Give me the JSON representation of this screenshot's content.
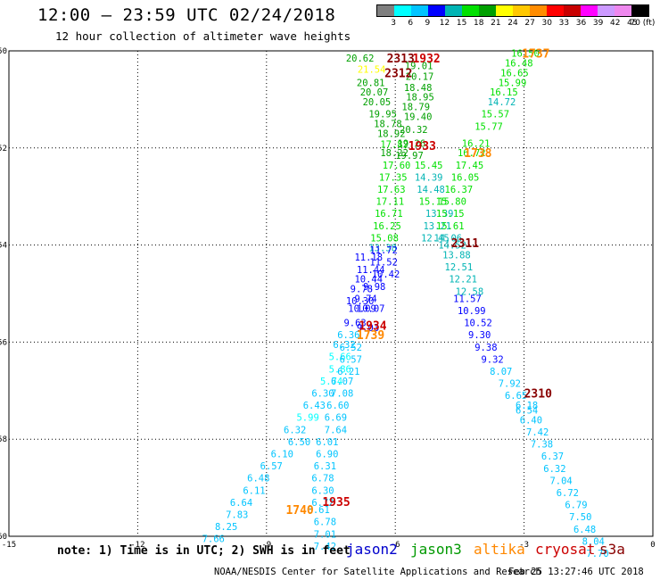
{
  "header": {
    "title": "12:00 – 23:59 UTC 02/24/2018",
    "subtitle": "12 hour collection of altimeter wave heights"
  },
  "colorbar": {
    "colors": [
      "#7f7f7f",
      "#00ffff",
      "#00c4ff",
      "#0000ff",
      "#00b4b4",
      "#00e000",
      "#00a000",
      "#ffff00",
      "#ffc800",
      "#ff8c00",
      "#ff0000",
      "#c80000",
      "#ff00ff",
      "#cc99ff",
      "#ee88ee",
      "#000000"
    ],
    "labels": [
      "3",
      "6",
      "9",
      "12",
      "15",
      "18",
      "21",
      "24",
      "27",
      "30",
      "33",
      "36",
      "39",
      "42",
      "45",
      "70 (ft)"
    ]
  },
  "note": "note: 1) Time is in UTC; 2) SWH is in feet",
  "legend": [
    {
      "name": "jason2",
      "color": "#0000cc"
    },
    {
      "name": "jason3",
      "color": "#009900"
    },
    {
      "name": "altika",
      "color": "#ff8800"
    },
    {
      "name": "cryosat",
      "color": "#cc0000"
    },
    {
      "name": "s3a",
      "color": "#880000"
    }
  ],
  "footer": {
    "credit": "NOAA/NESDIS Center for Satellite Applications and Research",
    "timestamp": "Feb 25 13:27:46 UTC 2018"
  },
  "chart_data": {
    "type": "scatter",
    "xlim": [
      -15,
      0
    ],
    "ylim": [
      -60,
      -50
    ],
    "xticks": [
      -15,
      -12,
      -9,
      -6,
      -3,
      0
    ],
    "yticks": [
      -50,
      -52,
      -54,
      -56,
      -58,
      -60
    ],
    "grid": true,
    "time_labels": [
      {
        "x": -6.2,
        "y": -50.15,
        "text": "2313",
        "color": "#880000"
      },
      {
        "x": -6.25,
        "y": -50.45,
        "text": "2312",
        "color": "#880000"
      },
      {
        "x": -5.6,
        "y": -50.15,
        "text": "1932",
        "color": "#cc0000"
      },
      {
        "x": -3.05,
        "y": -50.05,
        "text": "1737",
        "color": "#ff8800"
      },
      {
        "x": -5.7,
        "y": -51.95,
        "text": "1933",
        "color": "#cc0000"
      },
      {
        "x": -4.4,
        "y": -52.1,
        "text": "1738",
        "color": "#ff8800"
      },
      {
        "x": -4.7,
        "y": -53.95,
        "text": "2311",
        "color": "#880000"
      },
      {
        "x": -6.85,
        "y": -55.65,
        "text": "1934",
        "color": "#cc0000"
      },
      {
        "x": -6.9,
        "y": -55.85,
        "text": "1739",
        "color": "#ff8800"
      },
      {
        "x": -3.0,
        "y": -57.05,
        "text": "2310",
        "color": "#880000"
      },
      {
        "x": -7.7,
        "y": -59.28,
        "text": "1935",
        "color": "#cc0000"
      },
      {
        "x": -8.55,
        "y": -59.45,
        "text": "1740",
        "color": "#ff8800"
      }
    ],
    "jason3_descending": [
      [
        -7.15,
        -50.15,
        "20.62"
      ],
      [
        -6.88,
        -50.38,
        "21.54"
      ],
      [
        -6.9,
        -50.65,
        "20.81"
      ],
      [
        -6.82,
        -50.85,
        "20.07"
      ],
      [
        -6.76,
        -51.05,
        "20.05"
      ],
      [
        -6.62,
        -51.3,
        "19.95"
      ],
      [
        -6.5,
        -51.5,
        "18.78"
      ],
      [
        -6.42,
        -51.7,
        "18.92"
      ],
      [
        -6.35,
        -51.92,
        "17.82"
      ],
      [
        -6.35,
        -52.1,
        "18.22"
      ],
      [
        -6.3,
        -52.35,
        "17.60"
      ],
      [
        -6.38,
        -52.6,
        "17.35"
      ],
      [
        -6.42,
        -52.85,
        "17.63"
      ],
      [
        -6.45,
        -53.1,
        "17.11"
      ],
      [
        -6.48,
        -53.35,
        "16.71"
      ],
      [
        -6.52,
        -53.6,
        "16.25"
      ],
      [
        -6.58,
        -53.85,
        "15.08"
      ],
      [
        -6.62,
        -54.05,
        "13.38"
      ],
      [
        -5.78,
        -50.3,
        "19.01"
      ],
      [
        -5.76,
        -50.52,
        "20.17"
      ],
      [
        -5.8,
        -50.75,
        "18.48"
      ],
      [
        -5.75,
        -50.95,
        "18.95"
      ],
      [
        -5.85,
        -51.15,
        "18.79"
      ],
      [
        -5.8,
        -51.35,
        "19.40"
      ],
      [
        -5.9,
        -51.62,
        "20.32"
      ],
      [
        -5.95,
        -51.9,
        "19.26"
      ],
      [
        -6.0,
        -52.15,
        "19.97"
      ],
      [
        -5.55,
        -52.35,
        "15.45"
      ],
      [
        -5.55,
        -52.6,
        "14.39"
      ],
      [
        -5.5,
        -52.85,
        "14.48"
      ],
      [
        -5.45,
        -53.1,
        "15.15"
      ],
      [
        -5.3,
        -53.35,
        "13.39"
      ],
      [
        -5.35,
        -53.6,
        "13.21"
      ],
      [
        -5.4,
        -53.85,
        "12.45"
      ]
    ],
    "jason3_ascending": [
      [
        -3.3,
        -50.05,
        "16.50"
      ],
      [
        -3.45,
        -50.25,
        "16.48"
      ],
      [
        -3.55,
        -50.45,
        "16.65"
      ],
      [
        -3.6,
        -50.65,
        "15.99"
      ],
      [
        -3.8,
        -50.85,
        "16.15"
      ],
      [
        -3.85,
        -51.05,
        "14.72"
      ],
      [
        -4.0,
        -51.3,
        "15.57"
      ],
      [
        -4.15,
        -51.55,
        "15.77"
      ],
      [
        -4.45,
        -51.9,
        "16.21"
      ],
      [
        -4.55,
        -52.1,
        "16.72"
      ],
      [
        -4.6,
        -52.35,
        "17.45"
      ],
      [
        -4.7,
        -52.6,
        "16.05"
      ],
      [
        -4.85,
        -52.85,
        "16.37"
      ],
      [
        -5.0,
        -53.1,
        "15.80"
      ],
      [
        -5.05,
        -53.35,
        "15.15"
      ],
      [
        -5.05,
        -53.6,
        "15.61"
      ],
      [
        -5.1,
        -53.85,
        "14.06"
      ],
      [
        -5.0,
        -54.0,
        "14.52"
      ],
      [
        -4.9,
        -54.2,
        "13.88"
      ],
      [
        -4.85,
        -54.45,
        "12.51"
      ],
      [
        -4.75,
        -54.7,
        "12.21"
      ],
      [
        -4.6,
        -54.95,
        "12.58"
      ]
    ],
    "jason2": [
      [
        -6.6,
        -54.1,
        "11.72"
      ],
      [
        -6.95,
        -54.25,
        "11.18"
      ],
      [
        -6.6,
        -54.35,
        "11.52"
      ],
      [
        -6.9,
        -54.5,
        "11.44"
      ],
      [
        -6.55,
        -54.6,
        "10.42"
      ],
      [
        -6.95,
        -54.7,
        "10.44"
      ],
      [
        -6.75,
        -54.85,
        "9.98"
      ],
      [
        -7.05,
        -54.9,
        "9.78"
      ],
      [
        -6.95,
        -55.1,
        "9.74"
      ],
      [
        -7.15,
        -55.15,
        "10.30"
      ],
      [
        -7.1,
        -55.3,
        "10.09"
      ],
      [
        -6.9,
        -55.3,
        "10.07"
      ],
      [
        -7.2,
        -55.6,
        "9.63"
      ],
      [
        -6.9,
        -55.7,
        "9.03"
      ],
      [
        -4.65,
        -55.1,
        "11.57"
      ],
      [
        -4.55,
        -55.35,
        "10.99"
      ],
      [
        -4.4,
        -55.6,
        "10.52"
      ],
      [
        -4.3,
        -55.85,
        "9.30"
      ],
      [
        -4.15,
        -56.1,
        "9.38"
      ],
      [
        -4.0,
        -56.35,
        "9.32"
      ]
    ],
    "sky": [
      [
        -7.35,
        -55.85,
        "6.36"
      ],
      [
        -7.45,
        -56.05,
        "6.32"
      ],
      [
        -7.3,
        -56.1,
        "6.52"
      ],
      [
        -7.55,
        -56.3,
        "5.66"
      ],
      [
        -7.3,
        -56.35,
        "6.57"
      ],
      [
        -7.55,
        -56.55,
        "5.86"
      ],
      [
        -7.35,
        -56.6,
        "6.21"
      ],
      [
        -7.75,
        -56.8,
        "5.74"
      ],
      [
        -7.5,
        -56.8,
        "6.07"
      ],
      [
        -7.95,
        -57.05,
        "6.30"
      ],
      [
        -7.5,
        -57.05,
        "7.08"
      ],
      [
        -8.15,
        -57.3,
        "6.43"
      ],
      [
        -7.6,
        -57.3,
        "6.60"
      ],
      [
        -8.3,
        -57.55,
        "5.99"
      ],
      [
        -7.65,
        -57.55,
        "6.69"
      ],
      [
        -8.6,
        -57.8,
        "6.32"
      ],
      [
        -7.65,
        -57.8,
        "7.64"
      ],
      [
        -8.5,
        -58.05,
        "6.50"
      ],
      [
        -7.85,
        -58.05,
        "6.01"
      ],
      [
        -8.9,
        -58.3,
        "6.10"
      ],
      [
        -7.85,
        -58.3,
        "6.90"
      ],
      [
        -9.15,
        -58.55,
        "6.57"
      ],
      [
        -7.9,
        -58.55,
        "6.31"
      ],
      [
        -9.45,
        -58.8,
        "6.48"
      ],
      [
        -7.95,
        -58.8,
        "6.78"
      ],
      [
        -9.55,
        -59.05,
        "6.11"
      ],
      [
        -7.95,
        -59.05,
        "6.30"
      ],
      [
        -9.85,
        -59.3,
        "6.64"
      ],
      [
        -7.95,
        -59.3,
        "6.72"
      ],
      [
        -9.95,
        -59.55,
        "7.83"
      ],
      [
        -8.05,
        -59.45,
        "6.61"
      ],
      [
        -10.2,
        -59.8,
        "8.25"
      ],
      [
        -7.9,
        -59.7,
        "6.78"
      ],
      [
        -10.5,
        -60.05,
        "7.66"
      ],
      [
        -7.9,
        -59.95,
        "7.01"
      ],
      [
        -7.9,
        -60.2,
        "7.42"
      ],
      [
        -3.8,
        -56.6,
        "8.07"
      ],
      [
        -3.6,
        -56.85,
        "7.92"
      ],
      [
        -3.45,
        -57.1,
        "6.65"
      ],
      [
        -3.2,
        -57.3,
        "6.18"
      ],
      [
        -3.2,
        -57.4,
        "6.54"
      ],
      [
        -3.1,
        -57.6,
        "6.40"
      ],
      [
        -2.95,
        -57.85,
        "7.42"
      ],
      [
        -2.85,
        -58.1,
        "7.38"
      ],
      [
        -2.6,
        -58.35,
        "6.37"
      ],
      [
        -2.55,
        -58.6,
        "6.32"
      ],
      [
        -2.4,
        -58.85,
        "7.04"
      ],
      [
        -2.25,
        -59.1,
        "6.72"
      ],
      [
        -2.05,
        -59.35,
        "6.79"
      ],
      [
        -1.95,
        -59.6,
        "7.50"
      ],
      [
        -1.85,
        -59.85,
        "6.48"
      ],
      [
        -1.65,
        -60.1,
        "8.04"
      ],
      [
        -1.55,
        -60.35,
        "7.70"
      ]
    ]
  }
}
